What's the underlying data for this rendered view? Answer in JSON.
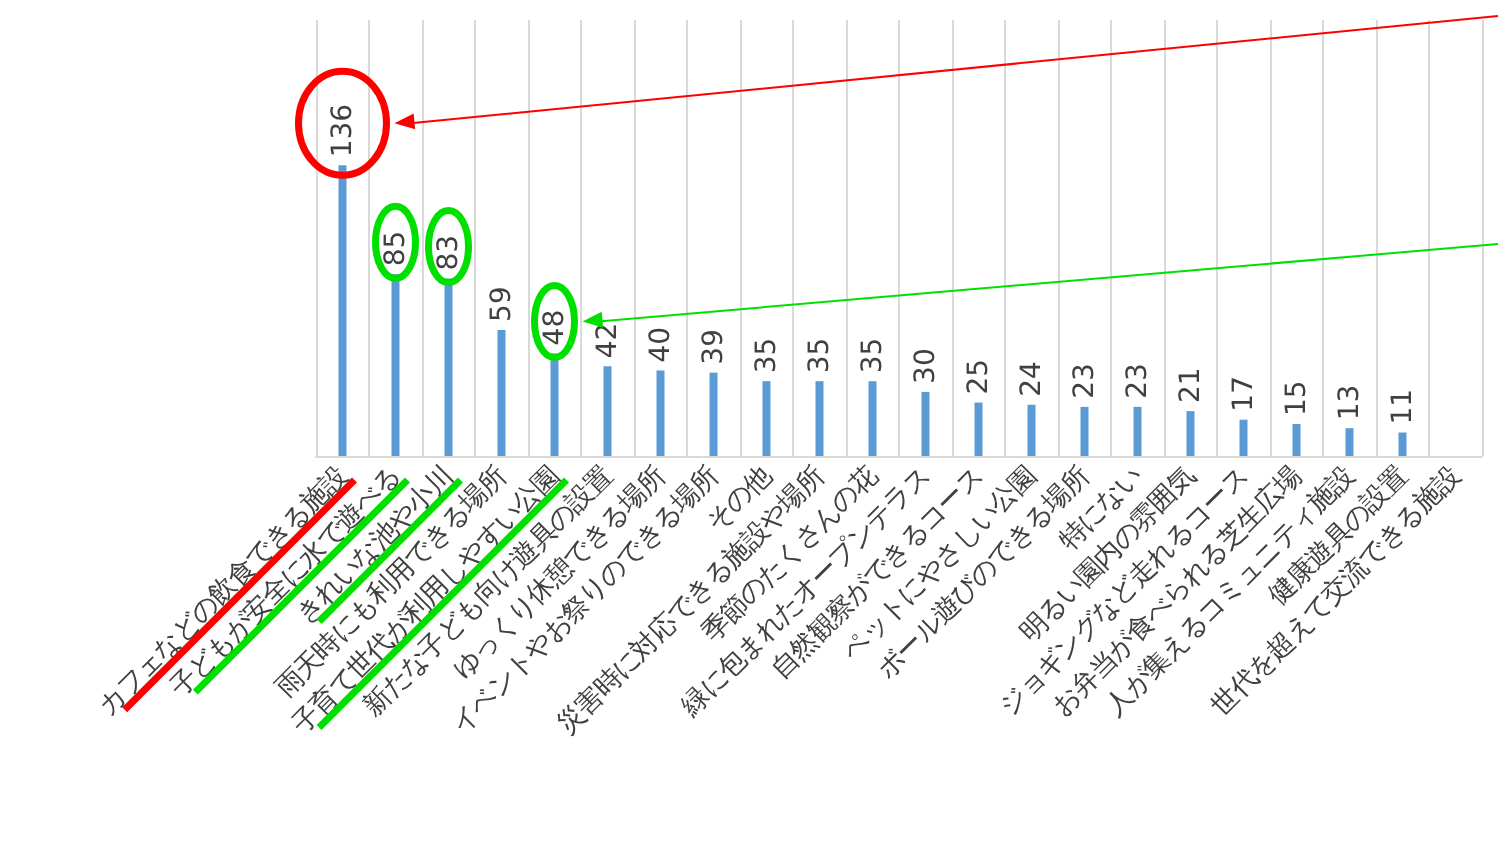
{
  "chart_data": {
    "type": "bar",
    "categories": [
      "カフェなどの飲食できる施設",
      "子どもが安全に水で遊べる",
      "きれいな池や小川",
      "雨天時にも利用できる場所",
      "子育て世代が利用しやすい公園",
      "新たな子ども向け遊具の設置",
      "ゆっくり休憩できる場所",
      "イベントやお祭りのできる場所",
      "その他",
      "災害時に対応できる施設や場所",
      "季節のたくさんの花",
      "緑に包まれたオープンテラス",
      "自然観察ができるコース",
      "ペットにやさしい公園",
      "ボール遊びのできる場所",
      "特にない",
      "明るい園内の雰囲気",
      "ジョギングなど走れるコース",
      "お弁当が食べられる芝生広場",
      "人が集えるコミュニティ施設",
      "健康遊具の設置",
      "世代を超えて交流できる施設"
    ],
    "values": [
      136,
      85,
      83,
      59,
      48,
      42,
      40,
      39,
      35,
      35,
      35,
      30,
      25,
      24,
      23,
      23,
      21,
      17,
      15,
      13,
      11,
      null
    ],
    "color": "#5b9bd5",
    "data_labels": true,
    "grid": "x"
  }
}
